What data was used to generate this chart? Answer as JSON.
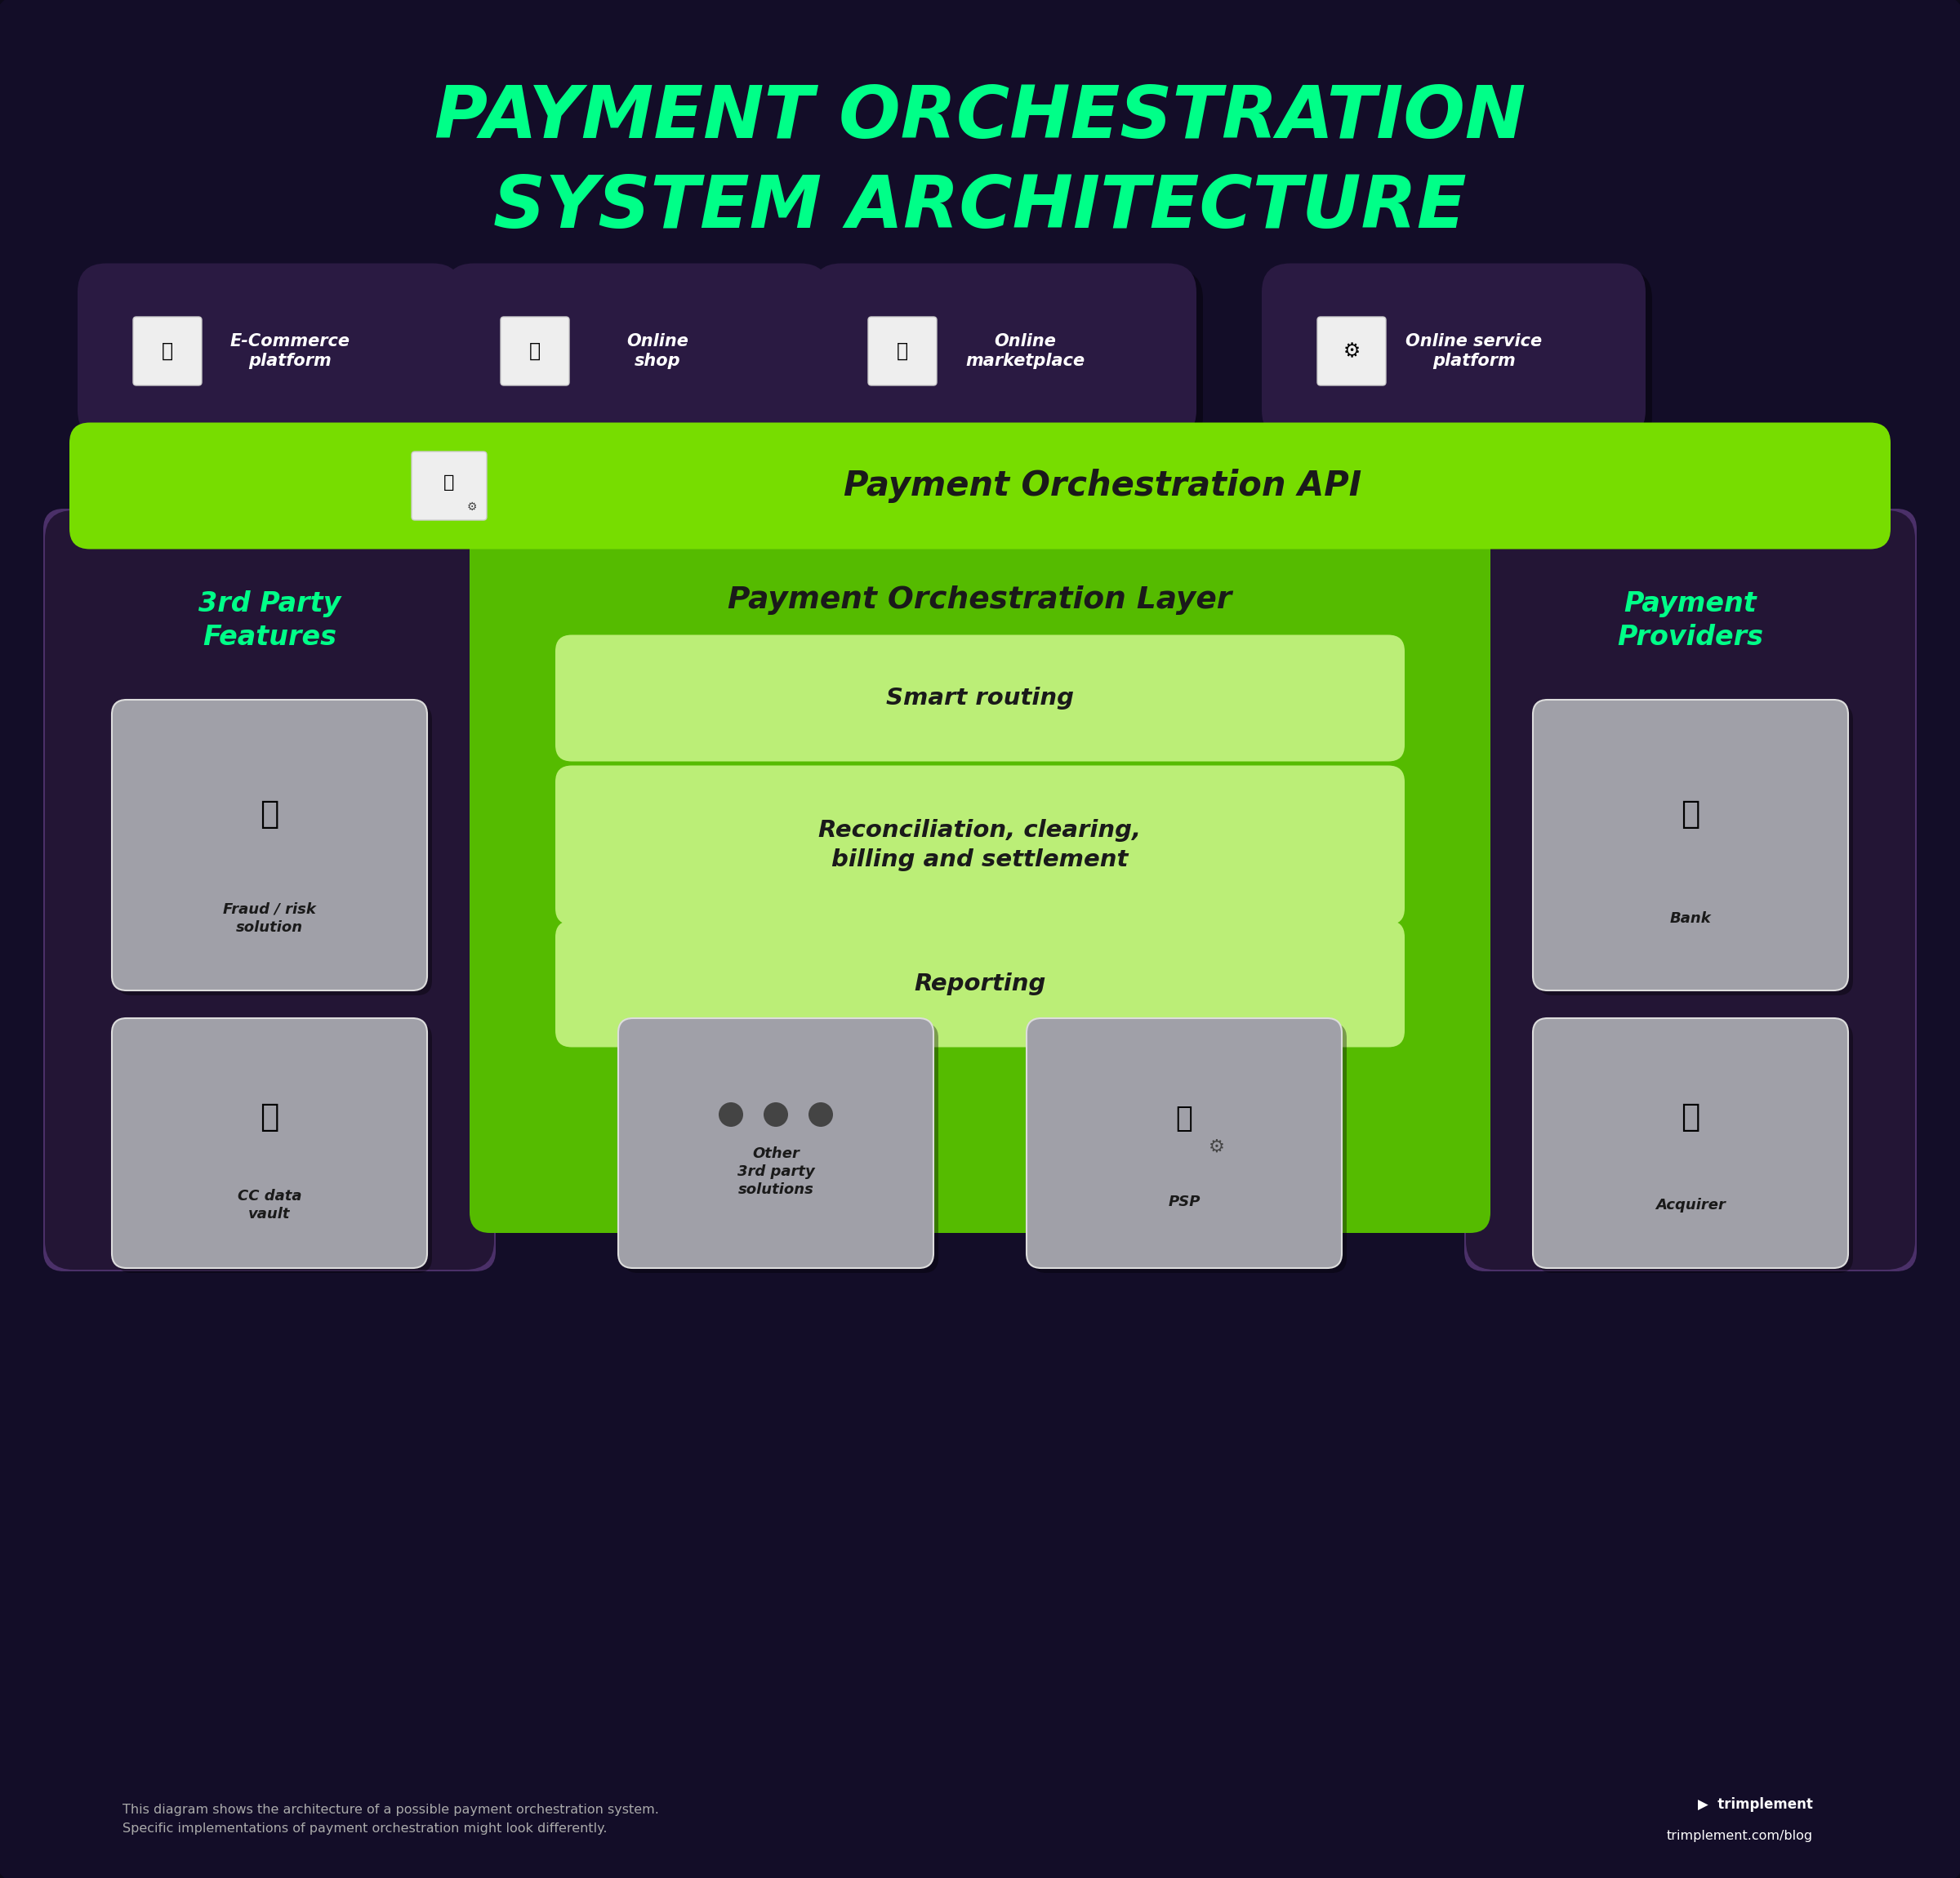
{
  "title_line1": "PAYMENT ORCHESTRATION",
  "title_line2": "SYSTEM ARCHITECTURE",
  "title_color": "#00FF88",
  "bg_color": "#0D0A1A",
  "source_boxes": [
    {
      "label": "E-Commerce\nplatform"
    },
    {
      "label": "Online\nshop"
    },
    {
      "label": "Online\nmarketplace"
    },
    {
      "label": "Online service\nplatform"
    }
  ],
  "api_label": "Payment Orchestration API",
  "api_bg": "#77DD00",
  "orchestration_layer_label": "Payment Orchestration Layer",
  "orchestration_layer_bg": "#55BB00",
  "orchestration_features": [
    "Smart routing",
    "Reconciliation, clearing,\nbilling and settlement",
    "Reporting"
  ],
  "feature_bg": "#BBEE77",
  "third_party_label": "3rd Party\nFeatures",
  "third_party_color": "#00FF88",
  "payment_providers_label": "Payment\nProviders",
  "payment_providers_color": "#00FF88",
  "left_panel_bg": "#231535",
  "left_panel_border": "#5A3A7A",
  "right_panel_bg": "#231535",
  "right_panel_border": "#5A3A7A",
  "item_bg": "#A0A0A8",
  "item_border": "#CCCCCC",
  "arrow_color": "#AAAAAA",
  "footer_text1": "This diagram shows the architecture of a possible payment orchestration system.",
  "footer_text2": "Specific implementations of payment orchestration might look differently.",
  "footer_color": "#AAAAAA"
}
